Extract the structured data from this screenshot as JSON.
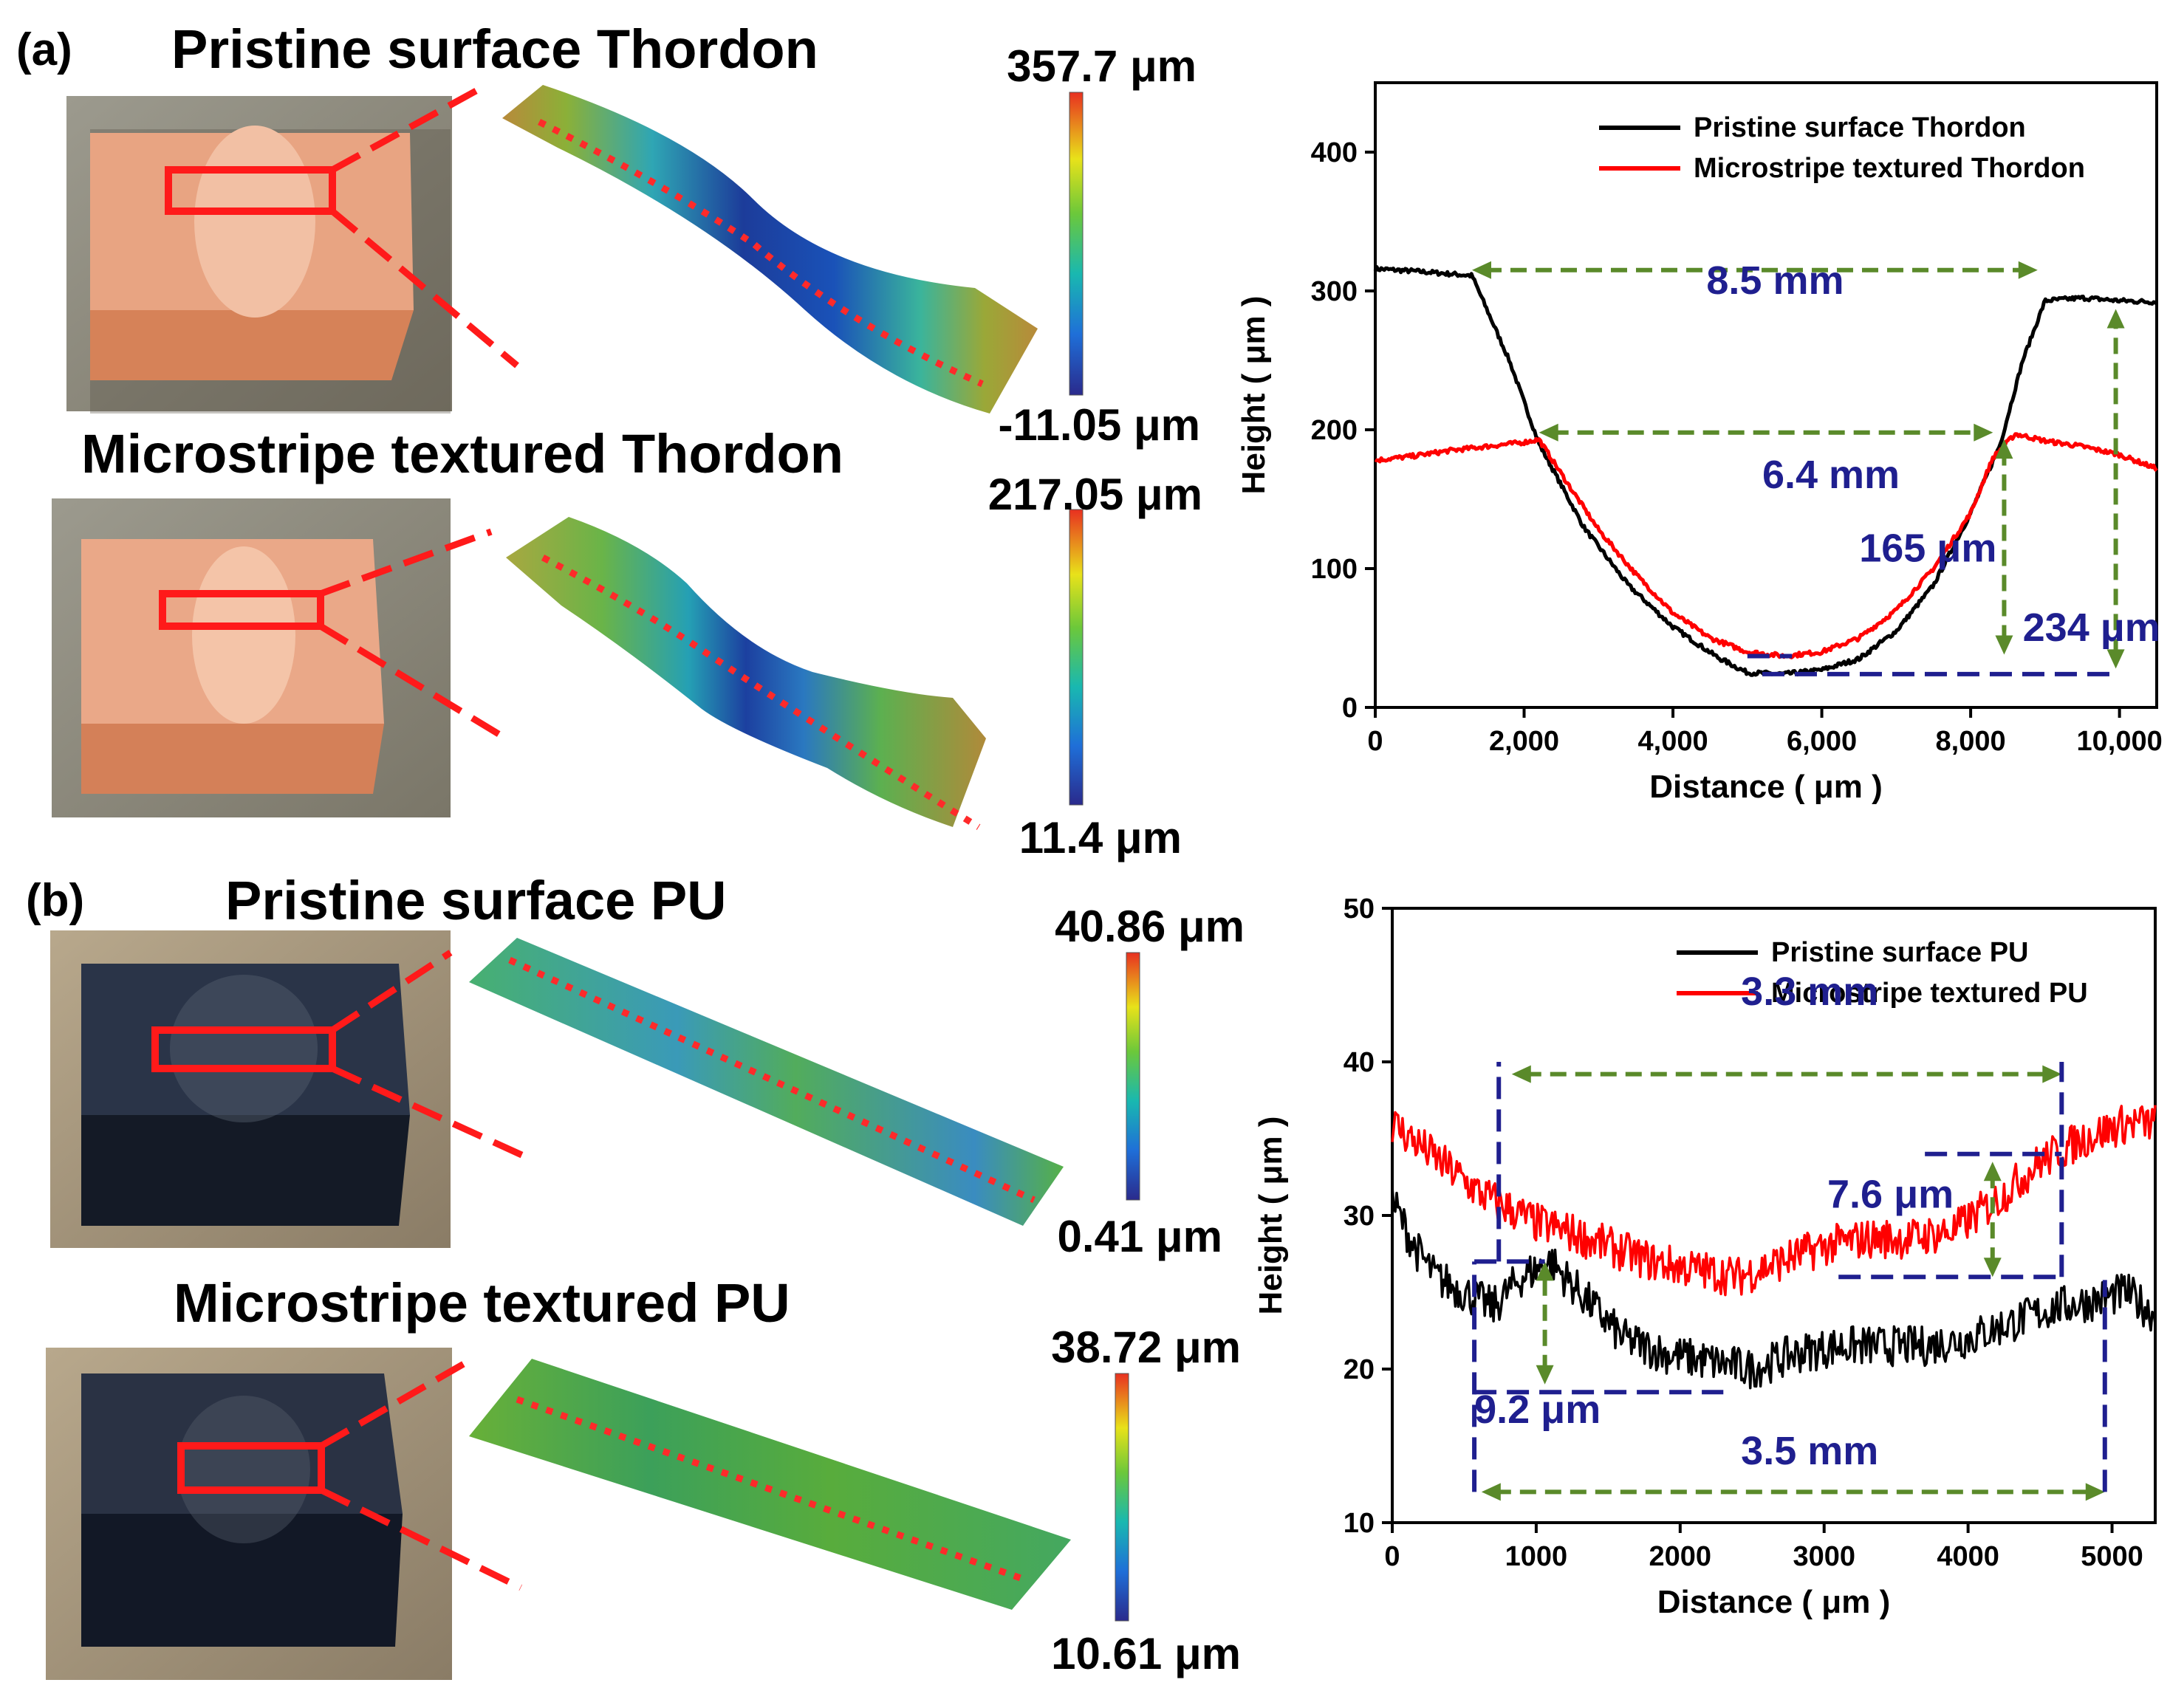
{
  "panel_a": {
    "label": "(a)",
    "top_title": "Pristine surface Thordon",
    "bottom_title": "Microstripe textured Thordon",
    "top_colorbar": {
      "max": "357.7 μm",
      "min": "-11.05 μm"
    },
    "bottom_colorbar": {
      "max": "217.05 μm",
      "min": "11.4 μm"
    }
  },
  "panel_b": {
    "label": "(b)",
    "top_title": "Pristine surface PU",
    "bottom_title": "Microstripe textured PU",
    "top_colorbar": {
      "max": "40.86 μm",
      "min": "0.41 μm"
    },
    "bottom_colorbar": {
      "max": "38.72 μm",
      "min": "10.61 μm"
    }
  },
  "colors": {
    "pristine": "#000000",
    "textured": "#ff0000",
    "annotation": "#1f1f8f",
    "arrow": "#5a8a2a",
    "outline": "#ff1a1a"
  },
  "chart_data": [
    {
      "type": "line",
      "xlabel": "Distance",
      "xunit": "μm",
      "ylabel": "Height",
      "yunit": "μm",
      "xlim": [
        0,
        10500
      ],
      "ylim": [
        0,
        450
      ],
      "xticks": [
        0,
        2000,
        4000,
        6000,
        8000,
        10000
      ],
      "xtick_labels": [
        "0",
        "2,000",
        "4,000",
        "6,000",
        "8,000",
        "10,000"
      ],
      "yticks": [
        0,
        100,
        200,
        300,
        400
      ],
      "ytick_labels": [
        "0",
        "100",
        "200",
        "300",
        "400"
      ],
      "legend_position": "top-right",
      "series": [
        {
          "name": "Pristine surface Thordon",
          "color": "#000000",
          "x": [
            0,
            600,
            1300,
            1800,
            2200,
            2800,
            3400,
            4000,
            4600,
            5000,
            5500,
            6000,
            6500,
            7000,
            7500,
            8000,
            8400,
            8700,
            9000,
            9500,
            10000,
            10500
          ],
          "y": [
            316,
            314,
            311,
            250,
            190,
            130,
            88,
            58,
            36,
            25,
            24,
            27,
            35,
            55,
            88,
            140,
            190,
            250,
            293,
            295,
            293,
            292
          ]
        },
        {
          "name": "Microstripe textured Thordon",
          "color": "#ff0000",
          "x": [
            0,
            500,
            1000,
            1500,
            2000,
            2200,
            2600,
            3000,
            3500,
            4000,
            4500,
            5000,
            5500,
            6000,
            6500,
            7000,
            7500,
            8000,
            8300,
            8600,
            9000,
            9500,
            10000,
            10500
          ],
          "y": [
            178,
            181,
            185,
            188,
            191,
            193,
            160,
            128,
            96,
            68,
            50,
            40,
            37,
            40,
            50,
            70,
            100,
            140,
            180,
            197,
            192,
            188,
            182,
            172
          ]
        }
      ],
      "annotations": [
        {
          "text": "8.5 mm"
        },
        {
          "text": "6.4 mm"
        },
        {
          "text": "165 μm"
        },
        {
          "text": "234 μm"
        }
      ]
    },
    {
      "type": "line",
      "xlabel": "Distance",
      "xunit": "μm",
      "ylabel": "Height",
      "yunit": "μm",
      "xlim": [
        0,
        5300
      ],
      "ylim": [
        10,
        50
      ],
      "xticks": [
        0,
        1000,
        2000,
        3000,
        4000,
        5000
      ],
      "xtick_labels": [
        "0",
        "1000",
        "2000",
        "3000",
        "4000",
        "5000"
      ],
      "yticks": [
        10,
        20,
        30,
        40,
        50
      ],
      "ytick_labels": [
        "10",
        "20",
        "30",
        "40",
        "50"
      ],
      "legend_position": "top-right",
      "series": [
        {
          "name": "Pristine surface PU",
          "color": "#000000",
          "x": [
            0,
            150,
            300,
            500,
            700,
            900,
            1100,
            1300,
            1600,
            1900,
            2200,
            2500,
            2800,
            3100,
            3400,
            3700,
            4000,
            4300,
            4600,
            4900,
            5100,
            5300
          ],
          "y": [
            31,
            28,
            26,
            25,
            24,
            26,
            27,
            25,
            22,
            21,
            20.5,
            20,
            21,
            21.5,
            21.5,
            21.5,
            22,
            23,
            24,
            24.5,
            25,
            23.5
          ]
        },
        {
          "name": "Microstripe textured PU",
          "color": "#ff0000",
          "x": [
            0,
            200,
            400,
            600,
            800,
            1000,
            1200,
            1500,
            1800,
            2100,
            2400,
            2700,
            3000,
            3300,
            3600,
            3900,
            4200,
            4500,
            4800,
            5100,
            5300
          ],
          "y": [
            36,
            34.5,
            33,
            31.5,
            30.5,
            29.5,
            29,
            28,
            27,
            26.5,
            26,
            27,
            28,
            28.5,
            28.5,
            29,
            31,
            33.5,
            35,
            36,
            36
          ]
        }
      ],
      "annotations": [
        {
          "text": "3.3 mm"
        },
        {
          "text": "7.6 μm"
        },
        {
          "text": "9.2 μm"
        },
        {
          "text": "3.5 mm"
        }
      ]
    }
  ]
}
